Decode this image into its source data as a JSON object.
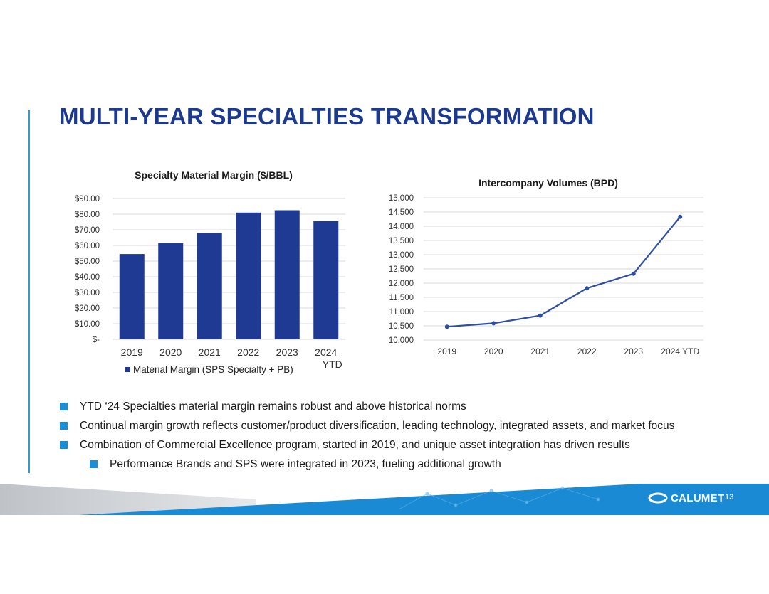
{
  "slide": {
    "title": "MULTI-YEAR SPECIALTIES TRANSFORMATION",
    "page_number": "13",
    "logo_text": "CALUMET"
  },
  "colors": {
    "title": "#1b3a8f",
    "bar": "#1f3a93",
    "line": "#2e4ea3",
    "bullet": "#1b8fd6",
    "footer": "#1a8ad4",
    "grid": "#d9d9d9"
  },
  "bullets": [
    {
      "text": "YTD ‘24 Specialties material margin remains robust and above historical norms",
      "level": 1
    },
    {
      "text": "Continual margin growth reflects customer/product diversification, leading technology, integrated assets, and market focus",
      "level": 1
    },
    {
      "text": "Combination of Commercial Excellence program, started in 2019, and unique asset integration has driven results",
      "level": 1
    },
    {
      "text": "Performance Brands and SPS were integrated in 2023, fueling additional growth",
      "level": 2
    }
  ],
  "chart_data": [
    {
      "type": "bar",
      "title": "Specialty Material Margin ($/BBL)",
      "categories": [
        "2019",
        "2020",
        "2021",
        "2022",
        "2023",
        "2024 YTD"
      ],
      "series": [
        {
          "name": "Material Margin (SPS Specialty + PB)",
          "values": [
            54.5,
            61.5,
            68,
            81,
            82.5,
            75.5
          ]
        }
      ],
      "ylim": [
        0,
        90
      ],
      "yticks": [
        0,
        10,
        20,
        30,
        40,
        50,
        60,
        70,
        80,
        90
      ],
      "ytick_labels": [
        "$-",
        "$10.00",
        "$20.00",
        "$30.00",
        "$40.00",
        "$50.00",
        "$60.00",
        "$70.00",
        "$80.00",
        "$90.00"
      ],
      "legend": "bottom",
      "grid": true
    },
    {
      "type": "line",
      "title": "Intercompany Volumes (BPD)",
      "categories": [
        "2019",
        "2020",
        "2021",
        "2022",
        "2023",
        "2024 YTD"
      ],
      "series": [
        {
          "name": "Intercompany Volumes",
          "values": [
            10470,
            10590,
            10860,
            11820,
            12330,
            14330
          ]
        }
      ],
      "ylim": [
        10000,
        15000
      ],
      "yticks": [
        10000,
        10500,
        11000,
        11500,
        12000,
        12500,
        13000,
        13500,
        14000,
        14500,
        15000
      ],
      "ytick_labels": [
        "10,000",
        "10,500",
        "11,000",
        "11,500",
        "12,000",
        "12,500",
        "13,000",
        "13,500",
        "14,000",
        "14,500",
        "15,000"
      ],
      "grid": true
    }
  ]
}
